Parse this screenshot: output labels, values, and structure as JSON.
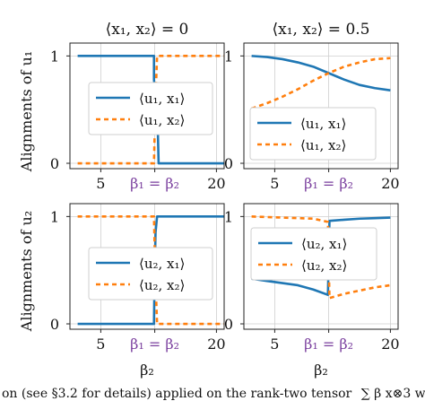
{
  "figure": {
    "caption_fragment": "on (see §3.2 for details) applied on the rank-two tensor",
    "caption_ref": "§3.2",
    "caption_math": "∑ β x⊗3 w",
    "columns": [
      {
        "title": "⟨x₁, x₂⟩ = 0"
      },
      {
        "title": "⟨x₁, x₂⟩ = 0.5"
      }
    ],
    "row_ylabels": [
      "Alignments of u₁",
      "Alignments of u₂"
    ],
    "xlabel": "β₂",
    "ytick_labels": [
      "1",
      "0"
    ],
    "xtick_labels": [
      "5",
      "β₁ = β₂",
      "20"
    ]
  },
  "colors": {
    "blue": "#1f77b4",
    "orange": "#ff7f0e",
    "annotation": "#7a3f9e"
  },
  "chart_data": [
    {
      "type": "line",
      "panel": "top-left",
      "title": "⟨x₁, x₂⟩ = 0",
      "ylabel": "Alignments of u₁",
      "xlim": [
        1,
        21
      ],
      "ylim": [
        -0.05,
        1.12
      ],
      "legend": "center-left",
      "series": [
        {
          "name": "⟨u₁, x₁⟩",
          "style": "solid",
          "color": "#1f77b4",
          "x": [
            2,
            11.9,
            11.9,
            12.4,
            12.5,
            21
          ],
          "y": [
            1,
            1,
            0.78,
            0.3,
            0,
            0
          ]
        },
        {
          "name": "⟨u₁, x₂⟩",
          "style": "dashed",
          "color": "#ff7f0e",
          "x": [
            2,
            11.9,
            12.05,
            12.3,
            21
          ],
          "y": [
            0,
            0,
            0.5,
            1,
            1
          ]
        }
      ]
    },
    {
      "type": "line",
      "panel": "top-right",
      "title": "⟨x₁, x₂⟩ = 0.5",
      "ylabel": "",
      "xlim": [
        1,
        21
      ],
      "ylim": [
        -0.05,
        1.12
      ],
      "legend": "lower-left",
      "series": [
        {
          "name": "⟨u₁, x₁⟩",
          "style": "solid",
          "color": "#1f77b4",
          "x": [
            2,
            4,
            6,
            8,
            10,
            12,
            14,
            16,
            18,
            20
          ],
          "y": [
            1.0,
            0.99,
            0.97,
            0.94,
            0.9,
            0.84,
            0.78,
            0.73,
            0.7,
            0.68
          ]
        },
        {
          "name": "⟨u₁, x₂⟩",
          "style": "dashed",
          "color": "#ff7f0e",
          "x": [
            2,
            4,
            6,
            8,
            10,
            12,
            14,
            16,
            18,
            20
          ],
          "y": [
            0.51,
            0.56,
            0.62,
            0.69,
            0.77,
            0.84,
            0.9,
            0.94,
            0.97,
            0.98
          ]
        }
      ]
    },
    {
      "type": "line",
      "panel": "bottom-left",
      "title": "",
      "ylabel": "Alignments of u₂",
      "xlim": [
        1,
        21
      ],
      "ylim": [
        -0.05,
        1.12
      ],
      "legend": "center-left",
      "series": [
        {
          "name": "⟨u₂, x₁⟩",
          "style": "solid",
          "color": "#1f77b4",
          "x": [
            2,
            11.9,
            11.95,
            12.1,
            12.3,
            21
          ],
          "y": [
            0,
            0,
            0.3,
            0.85,
            1,
            1
          ]
        },
        {
          "name": "⟨u₂, x₂⟩",
          "style": "dashed",
          "color": "#ff7f0e",
          "x": [
            2,
            11.9,
            12.05,
            12.3,
            21
          ],
          "y": [
            1,
            1,
            0.5,
            0,
            0
          ]
        }
      ]
    },
    {
      "type": "line",
      "panel": "bottom-right",
      "title": "",
      "ylabel": "",
      "xlim": [
        1,
        21
      ],
      "ylim": [
        -0.05,
        1.12
      ],
      "legend": "upper-left",
      "series": [
        {
          "name": "⟨u₂, x₁⟩",
          "style": "solid",
          "color": "#1f77b4",
          "x": [
            2,
            4,
            6,
            8,
            10,
            11.9,
            12.1,
            14,
            16,
            18,
            20
          ],
          "y": [
            0.42,
            0.4,
            0.38,
            0.36,
            0.32,
            0.27,
            0.96,
            0.97,
            0.98,
            0.985,
            0.99
          ]
        },
        {
          "name": "⟨u₂, x₂⟩",
          "style": "dashed",
          "color": "#ff7f0e",
          "x": [
            2,
            4,
            6,
            8,
            10,
            11.9,
            12.1,
            14,
            16,
            18,
            20
          ],
          "y": [
            1.0,
            0.995,
            0.99,
            0.985,
            0.98,
            0.95,
            0.24,
            0.28,
            0.31,
            0.34,
            0.36
          ]
        }
      ]
    }
  ]
}
